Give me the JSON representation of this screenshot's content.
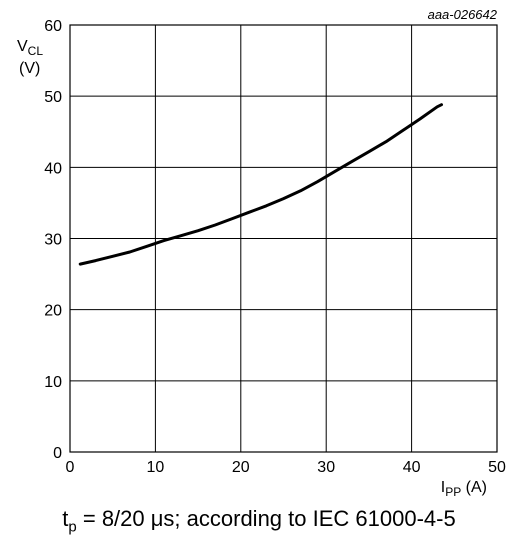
{
  "chart_data": {
    "type": "line",
    "figure_id": "aaa-026642",
    "ylabel": {
      "main": "V",
      "sub": "CL",
      "unit": "(V)"
    },
    "xlabel": {
      "main": "I",
      "sub": "PP",
      "unit": "(A)"
    },
    "xlim": [
      0,
      50
    ],
    "ylim": [
      0,
      60
    ],
    "xticks": [
      "0",
      "10",
      "20",
      "30",
      "40",
      "50"
    ],
    "yticks": [
      "0",
      "10",
      "20",
      "30",
      "40",
      "50",
      "60"
    ],
    "grid": true,
    "series": [
      {
        "color": "#000000",
        "x": [
          1.2,
          3,
          5,
          7,
          9,
          11,
          13,
          15,
          17,
          19,
          21,
          23,
          25,
          27,
          29,
          31,
          33,
          35,
          37,
          39,
          41,
          43,
          43.5
        ],
        "y": [
          26.4,
          26.9,
          27.5,
          28.1,
          28.9,
          29.7,
          30.4,
          31.1,
          31.9,
          32.8,
          33.7,
          34.6,
          35.6,
          36.7,
          38.0,
          39.4,
          40.8,
          42.2,
          43.6,
          45.2,
          46.8,
          48.5,
          48.8
        ]
      }
    ]
  },
  "caption": {
    "t": "t",
    "t_sub": "p",
    "rest": " = 8/20 μs; according to IEC 61000-4-5"
  }
}
